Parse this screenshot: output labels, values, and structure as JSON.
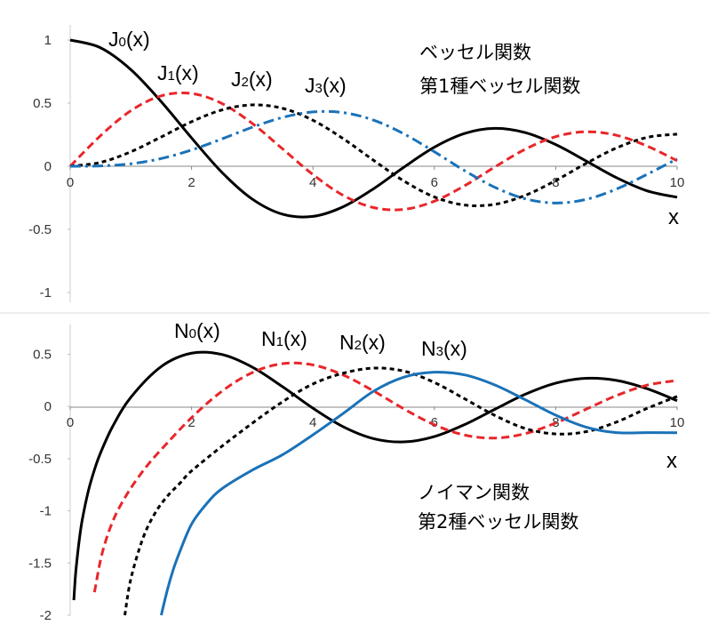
{
  "chart_data": [
    {
      "type": "line",
      "annotation_lines": [
        "ベッセル関数",
        "第1種ベッセル関数"
      ],
      "xlabel": "x",
      "xlim": [
        0,
        10
      ],
      "ylim": [
        -1,
        1
      ],
      "x_ticks": [
        "0",
        "2",
        "4",
        "6",
        "8",
        "10"
      ],
      "y_ticks": [
        "1",
        "0.5",
        "0",
        "-0.5",
        "-1"
      ],
      "x": [
        0,
        0.5,
        1,
        1.5,
        2,
        2.5,
        3,
        3.5,
        4,
        4.5,
        5,
        5.5,
        6,
        6.5,
        7,
        7.5,
        8,
        8.5,
        9,
        9.5,
        10
      ],
      "series": [
        {
          "name_main": "J",
          "name_sub": "0",
          "name_tail": "(x)",
          "color": "#000000",
          "dash": "solid",
          "values": [
            1.0,
            0.9385,
            0.7652,
            0.5118,
            0.2239,
            -0.0484,
            -0.2601,
            -0.3801,
            -0.3971,
            -0.3205,
            -0.1776,
            -0.0068,
            0.1506,
            0.2601,
            0.3001,
            0.2663,
            0.1717,
            0.0419,
            -0.0903,
            -0.1939,
            -0.2459
          ]
        },
        {
          "name_main": "J",
          "name_sub": "1",
          "name_tail": "(x)",
          "color": "#e8262a",
          "dash": "dashed",
          "values": [
            0.0,
            0.2423,
            0.4401,
            0.5579,
            0.5767,
            0.4971,
            0.3391,
            0.1374,
            -0.066,
            -0.2311,
            -0.3276,
            -0.3414,
            -0.2767,
            -0.1538,
            -0.0047,
            0.1352,
            0.2346,
            0.2731,
            0.2453,
            0.1613,
            0.0435
          ]
        },
        {
          "name_main": "J",
          "name_sub": "2",
          "name_tail": "(x)",
          "color": "#000000",
          "dash": "dotted",
          "values": [
            0.0,
            0.0306,
            0.1149,
            0.2321,
            0.3528,
            0.4461,
            0.4861,
            0.4586,
            0.3641,
            0.2178,
            0.0466,
            -0.1173,
            -0.2429,
            -0.3074,
            -0.3014,
            -0.2303,
            -0.113,
            0.0223,
            0.1448,
            0.2279,
            0.2546
          ]
        },
        {
          "name_main": "J",
          "name_sub": "3",
          "name_tail": "(x)",
          "color": "#1a72b8",
          "dash": "dashdot",
          "values": [
            0.0,
            0.0026,
            0.0196,
            0.061,
            0.1289,
            0.2166,
            0.3091,
            0.3868,
            0.4302,
            0.4247,
            0.3648,
            0.2561,
            0.1148,
            -0.0353,
            -0.1676,
            -0.2581,
            -0.2911,
            -0.2626,
            -0.1809,
            -0.0653,
            0.0584
          ]
        }
      ]
    },
    {
      "type": "line",
      "annotation_lines": [
        "ノイマン関数",
        "第2種ベッセル関数"
      ],
      "xlabel": "x",
      "xlim": [
        0,
        10
      ],
      "ylim": [
        -2,
        0.8
      ],
      "x_ticks": [
        "0",
        "2",
        "4",
        "6",
        "8",
        "10"
      ],
      "y_ticks": [
        "0.5",
        "0",
        "-0.5",
        "-1",
        "-1.5",
        "-2"
      ],
      "series": [
        {
          "name_main": "N",
          "name_sub": "0",
          "name_tail": "(x)",
          "color": "#000000",
          "dash": "solid",
          "x": [
            0.06,
            0.08,
            0.1,
            0.15,
            0.2,
            0.3,
            0.4,
            0.5,
            0.7,
            1,
            1.5,
            2,
            2.5,
            3,
            3.5,
            4,
            4.5,
            5,
            5.5,
            6,
            6.5,
            7,
            7.5,
            8,
            8.5,
            9,
            9.5,
            10
          ],
          "values": [
            -1.856,
            -1.672,
            -1.534,
            -1.277,
            -1.081,
            -0.807,
            -0.606,
            -0.4445,
            -0.191,
            0.0883,
            0.3824,
            0.5104,
            0.4981,
            0.3769,
            0.189,
            -0.0169,
            -0.1947,
            -0.3085,
            -0.3395,
            -0.2882,
            -0.1732,
            -0.0259,
            0.1173,
            0.2235,
            0.2702,
            0.2499,
            0.1712,
            0.0557
          ]
        },
        {
          "name_main": "N",
          "name_sub": "1",
          "name_tail": "(x)",
          "color": "#e8262a",
          "dash": "dashed",
          "x": [
            0.4,
            0.5,
            0.6,
            0.7,
            0.8,
            1,
            1.25,
            1.5,
            2,
            2.5,
            3,
            3.5,
            4,
            4.5,
            5,
            5.5,
            6,
            6.5,
            7,
            7.5,
            8,
            8.5,
            9,
            9.5,
            10
          ],
          "values": [
            -1.78,
            -1.471,
            -1.26,
            -1.103,
            -0.978,
            -0.7812,
            -0.58,
            -0.4123,
            -0.107,
            0.1459,
            0.3247,
            0.4102,
            0.3979,
            0.301,
            0.1479,
            -0.0238,
            -0.175,
            -0.2741,
            -0.3027,
            -0.2591,
            -0.1581,
            -0.0262,
            0.1043,
            0.2037,
            0.249
          ]
        },
        {
          "name_main": "N",
          "name_sub": "2",
          "name_tail": "(x)",
          "color": "#000000",
          "dash": "dotted",
          "x": [
            0.9,
            1,
            1.2,
            1.4,
            1.6,
            1.8,
            2,
            2.5,
            3,
            3.5,
            4,
            4.5,
            5,
            5.5,
            6,
            6.5,
            7,
            7.5,
            8,
            8.5,
            9,
            9.5,
            10
          ],
          "values": [
            -2.0,
            -1.65,
            -1.26,
            -1.02,
            -0.86,
            -0.74,
            -0.6174,
            -0.3813,
            -0.1604,
            0.0453,
            0.2159,
            0.3191,
            0.3677,
            0.3385,
            0.2299,
            0.0734,
            -0.0867,
            -0.2113,
            -0.263,
            -0.2413,
            -0.1495,
            -0.0193,
            0.0958
          ]
        },
        {
          "name_main": "N",
          "name_sub": "3",
          "name_tail": "(x)",
          "color": "#1a72b8",
          "dash": "solid",
          "x": [
            1.5,
            1.6,
            1.7,
            1.8,
            2,
            2.25,
            2.5,
            3,
            3.5,
            4,
            4.5,
            5,
            5.5,
            6,
            6.5,
            7,
            7.5,
            8,
            8.5,
            9,
            9.5,
            10
          ],
          "values": [
            -2.0,
            -1.76,
            -1.56,
            -1.4,
            -1.127,
            -0.93,
            -0.7883,
            -0.6101,
            -0.4621,
            -0.2716,
            -0.0658,
            0.1463,
            0.2811,
            0.3283,
            0.3022,
            0.2052,
            0.0639,
            -0.0836,
            -0.1975,
            -0.2507,
            -0.2505,
            -0.2513
          ]
        }
      ]
    }
  ]
}
